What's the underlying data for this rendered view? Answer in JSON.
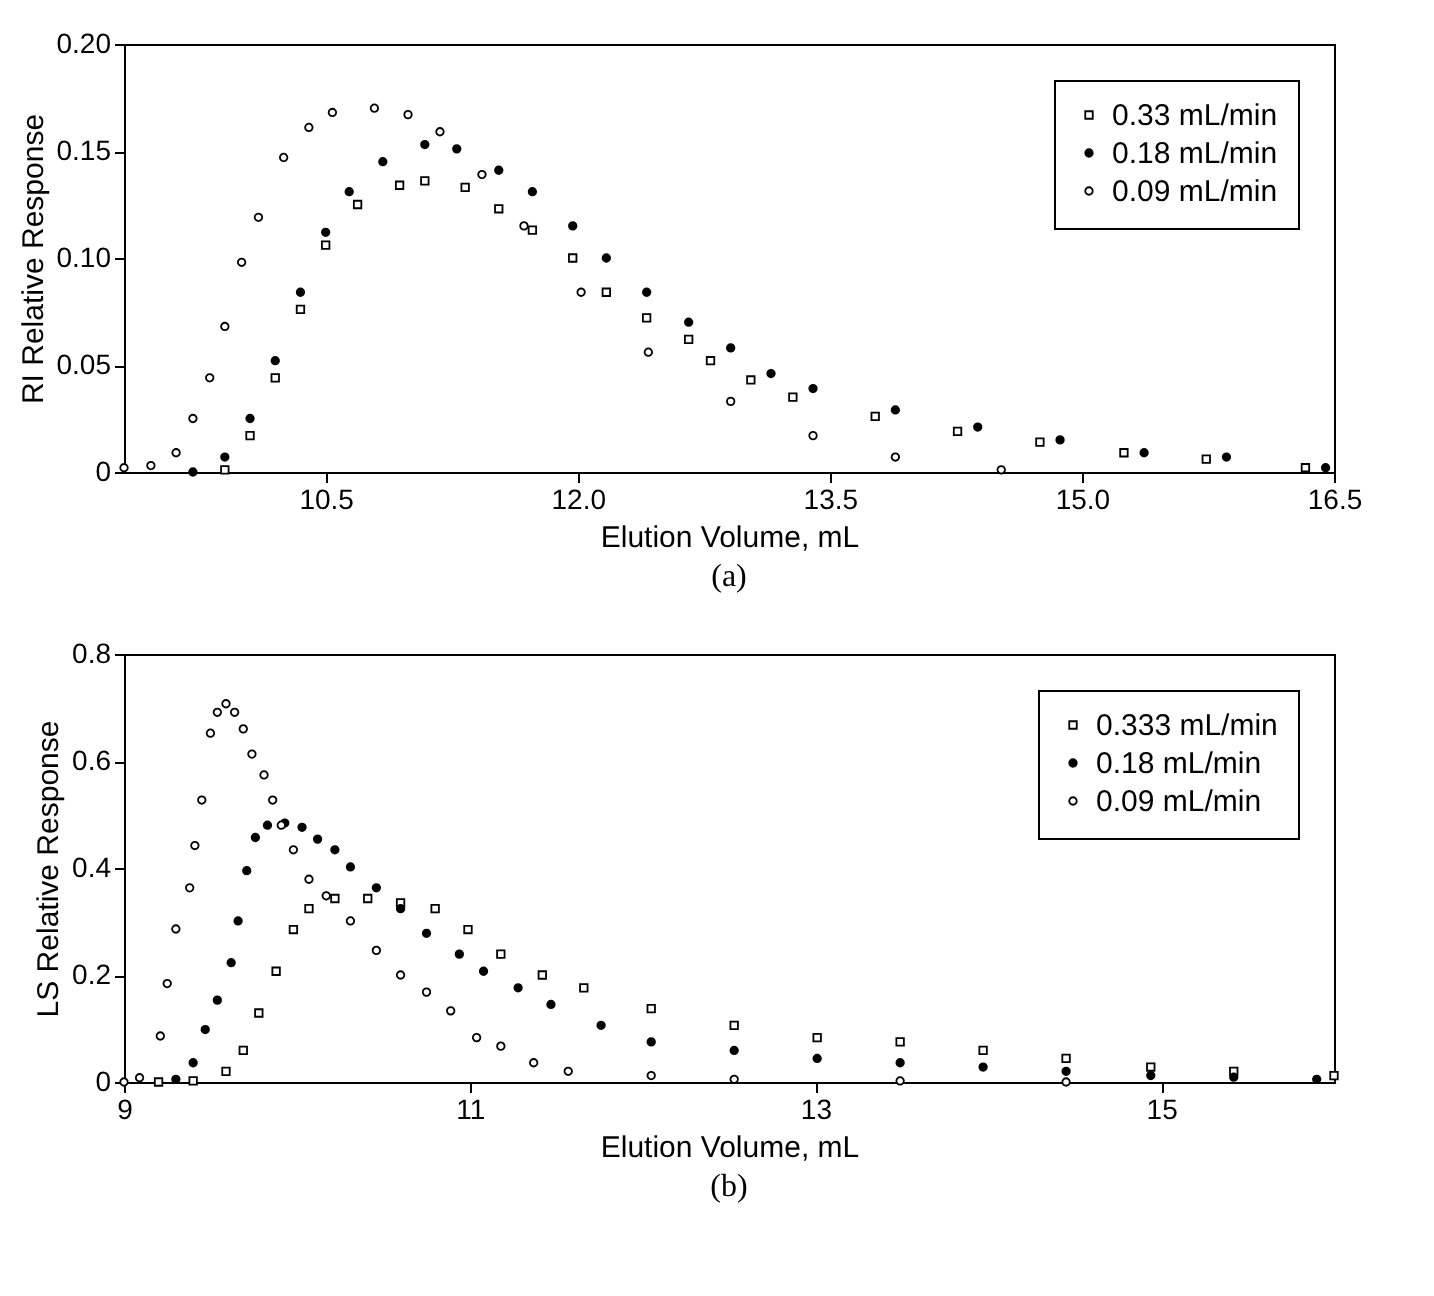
{
  "chart_data": [
    {
      "type": "scatter",
      "xlabel": "Elution Volume, mL",
      "ylabel": "RI Relative Response",
      "annotations": [
        "(a)"
      ],
      "xlim": [
        9.3,
        16.5
      ],
      "xticks": [
        10.5,
        {
          "value": 12,
          "label": "12.0"
        },
        13.5,
        {
          "value": 15,
          "label": "15.0"
        },
        16.5
      ],
      "ylim": [
        0,
        0.2
      ],
      "yticks": [
        0,
        0.05,
        {
          "value": 0.1,
          "label": "0.10"
        },
        0.15,
        {
          "value": 0.2,
          "label": "0.20"
        }
      ],
      "legend": "top right",
      "series": [
        {
          "name": "0.33 mL/min",
          "color": "#ffffff",
          "marker": "square",
          "x": [
            9.9,
            10.05,
            10.2,
            10.35,
            10.5,
            10.69,
            10.94,
            11.09,
            11.33,
            11.53,
            11.73,
            11.97,
            12.17,
            12.41,
            12.66,
            12.79,
            13.03,
            13.28,
            13.77,
            14.26,
            14.75,
            15.25,
            15.74,
            16.33
          ],
          "values": [
            0.001,
            0.017,
            0.044,
            0.076,
            0.106,
            0.125,
            0.134,
            0.136,
            0.133,
            0.123,
            0.113,
            0.1,
            0.084,
            0.072,
            0.062,
            0.052,
            0.043,
            0.035,
            0.026,
            0.019,
            0.014,
            0.009,
            0.006,
            0.002
          ]
        },
        {
          "name": "0.18 mL/min",
          "color": "#000000",
          "marker": "circle",
          "x": [
            9.71,
            9.9,
            10.05,
            10.2,
            10.35,
            10.5,
            10.64,
            10.84,
            11.09,
            11.28,
            11.53,
            11.73,
            11.97,
            12.17,
            12.41,
            12.66,
            12.91,
            13.15,
            13.4,
            13.89,
            14.38,
            14.87,
            15.37,
            15.86,
            16.45
          ],
          "values": [
            0.0,
            0.007,
            0.025,
            0.052,
            0.084,
            0.112,
            0.131,
            0.145,
            0.153,
            0.151,
            0.141,
            0.131,
            0.115,
            0.1,
            0.084,
            0.07,
            0.058,
            0.046,
            0.039,
            0.029,
            0.021,
            0.015,
            0.009,
            0.007,
            0.002
          ]
        },
        {
          "name": "0.09 mL/min",
          "color": "#ffffff",
          "marker": "circle",
          "x": [
            9.3,
            9.46,
            9.61,
            9.71,
            9.81,
            9.9,
            10.0,
            10.1,
            10.25,
            10.4,
            10.54,
            10.79,
            10.99,
            11.18,
            11.43,
            11.68,
            12.02,
            12.42,
            12.91,
            13.4,
            13.89,
            14.52
          ],
          "values": [
            0.002,
            0.003,
            0.009,
            0.025,
            0.044,
            0.068,
            0.098,
            0.119,
            0.147,
            0.161,
            0.168,
            0.17,
            0.167,
            0.159,
            0.139,
            0.115,
            0.084,
            0.056,
            0.033,
            0.017,
            0.007,
            0.001
          ]
        }
      ]
    },
    {
      "type": "scatter",
      "xlabel": "Elution Volume, mL",
      "ylabel": "LS Relative Response",
      "annotations": [
        "(b)"
      ],
      "xlim": [
        9,
        16
      ],
      "xticks": [
        9,
        11,
        13,
        15
      ],
      "ylim": [
        0,
        0.8
      ],
      "yticks": [
        0,
        0.2,
        0.4,
        0.6,
        0.8
      ],
      "legend": "top right",
      "series": [
        {
          "name": "0.333 mL/min",
          "color": "#ffffff",
          "marker": "square",
          "x": [
            9.2,
            9.4,
            9.59,
            9.69,
            9.78,
            9.88,
            9.98,
            10.07,
            10.22,
            10.41,
            10.6,
            10.8,
            10.99,
            11.18,
            11.42,
            11.66,
            12.05,
            12.53,
            13.01,
            13.49,
            13.97,
            14.45,
            14.94,
            15.42,
            16.0
          ],
          "values": [
            0.0,
            0.002,
            0.02,
            0.059,
            0.129,
            0.207,
            0.285,
            0.324,
            0.343,
            0.343,
            0.335,
            0.324,
            0.285,
            0.239,
            0.2,
            0.176,
            0.137,
            0.106,
            0.083,
            0.075,
            0.059,
            0.044,
            0.028,
            0.02,
            0.012
          ]
        },
        {
          "name": "0.18 mL/min",
          "color": "#000000",
          "marker": "circle",
          "x": [
            9.3,
            9.4,
            9.47,
            9.54,
            9.62,
            9.66,
            9.71,
            9.76,
            9.83,
            9.93,
            10.03,
            10.12,
            10.22,
            10.31,
            10.46,
            10.6,
            10.75,
            10.94,
            11.08,
            11.28,
            11.47,
            11.76,
            12.05,
            12.53,
            13.01,
            13.49,
            13.97,
            14.45,
            14.94,
            15.42,
            15.9
          ],
          "values": [
            0.005,
            0.036,
            0.098,
            0.153,
            0.223,
            0.301,
            0.395,
            0.457,
            0.48,
            0.484,
            0.476,
            0.454,
            0.434,
            0.402,
            0.363,
            0.324,
            0.278,
            0.239,
            0.207,
            0.176,
            0.145,
            0.106,
            0.075,
            0.059,
            0.044,
            0.036,
            0.028,
            0.02,
            0.012,
            0.009,
            0.005
          ]
        },
        {
          "name": "0.09 mL/min",
          "color": "#ffffff",
          "marker": "circle",
          "x": [
            9.0,
            9.09,
            9.21,
            9.25,
            9.3,
            9.38,
            9.41,
            9.45,
            9.5,
            9.54,
            9.59,
            9.64,
            9.69,
            9.74,
            9.81,
            9.86,
            9.91,
            9.98,
            10.07,
            10.17,
            10.31,
            10.46,
            10.6,
            10.75,
            10.89,
            11.04,
            11.18,
            11.37,
            11.57,
            12.05,
            12.53,
            13.49,
            14.45
          ],
          "values": [
            0.0,
            0.008,
            0.086,
            0.184,
            0.286,
            0.363,
            0.442,
            0.527,
            0.652,
            0.691,
            0.707,
            0.691,
            0.66,
            0.613,
            0.574,
            0.527,
            0.48,
            0.434,
            0.379,
            0.348,
            0.301,
            0.246,
            0.2,
            0.168,
            0.133,
            0.083,
            0.067,
            0.036,
            0.02,
            0.012,
            0.005,
            0.002,
            0.0
          ]
        }
      ]
    }
  ]
}
